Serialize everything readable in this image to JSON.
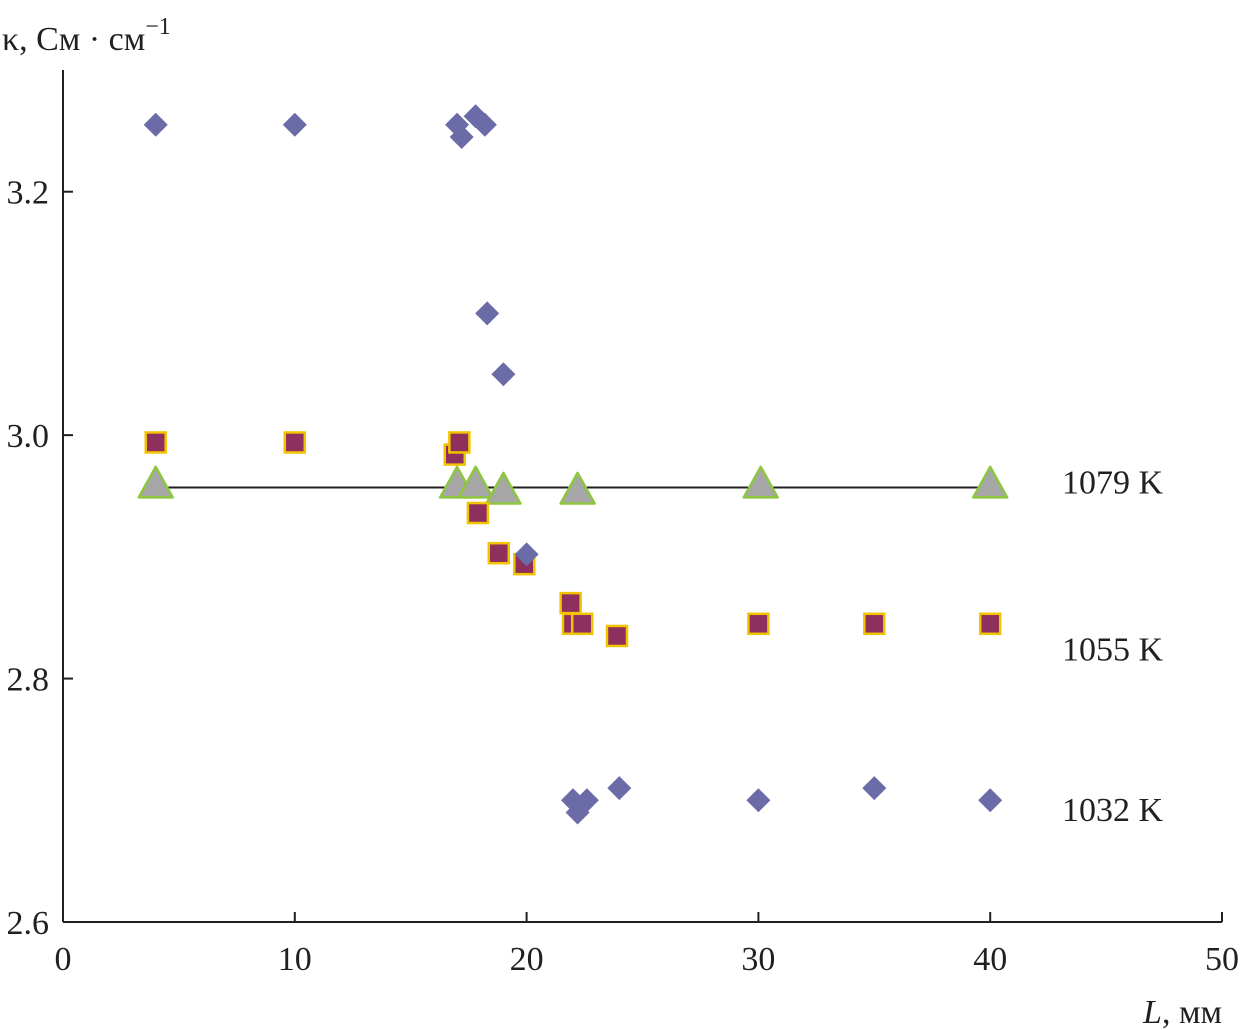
{
  "chart_data": {
    "type": "scatter",
    "title": "",
    "ylabel": {
      "main": "κ, См · см",
      "sup": "−1"
    },
    "xlabel": {
      "italic": "L",
      "rest": ", мм"
    },
    "xlim": [
      0,
      50
    ],
    "ylim": [
      2.6,
      3.3
    ],
    "xticks": [
      0,
      10,
      20,
      30,
      40,
      50
    ],
    "xtick_labels": [
      "0",
      "10",
      "20",
      "30",
      "40",
      "50"
    ],
    "yticks": [
      2.6,
      2.8,
      3.0,
      3.2
    ],
    "ytick_labels": [
      "2.6",
      "2.8",
      "3.0",
      "3.2"
    ],
    "grid": false,
    "colors": {
      "diamond": "#6b6ba8",
      "square_fill": "#8e2f5e",
      "square_edge": "#f2c400",
      "triangle_fill": "#a6a6a6",
      "triangle_edge": "#8dc63f",
      "line": "#231f20",
      "axis": "#231f20"
    },
    "series": [
      {
        "name": "1032 K",
        "marker": "diamond",
        "label_y": 2.683,
        "points": [
          [
            4,
            3.255
          ],
          [
            10,
            3.255
          ],
          [
            17,
            3.255
          ],
          [
            17.2,
            3.245
          ],
          [
            17.8,
            3.262
          ],
          [
            18.2,
            3.255
          ],
          [
            18.3,
            3.1
          ],
          [
            19,
            3.05
          ],
          [
            20,
            2.902
          ],
          [
            22,
            2.7
          ],
          [
            22.2,
            2.69
          ],
          [
            22.6,
            2.7
          ],
          [
            24,
            2.71
          ],
          [
            30,
            2.7
          ],
          [
            35,
            2.71
          ],
          [
            40,
            2.7
          ]
        ]
      },
      {
        "name": "1055 K",
        "marker": "square",
        "label_y": 2.815,
        "points": [
          [
            4,
            2.994
          ],
          [
            10,
            2.994
          ],
          [
            16.9,
            2.984
          ],
          [
            17.1,
            2.994
          ],
          [
            17.9,
            2.936
          ],
          [
            18.8,
            2.903
          ],
          [
            19.9,
            2.894
          ],
          [
            21.9,
            2.862
          ],
          [
            22,
            2.845
          ],
          [
            22.4,
            2.845
          ],
          [
            23.9,
            2.835
          ],
          [
            30,
            2.845
          ],
          [
            35,
            2.845
          ],
          [
            40,
            2.845
          ]
        ]
      },
      {
        "name": "1079 K",
        "marker": "triangle",
        "label_y": 2.952,
        "points": [
          [
            4,
            2.96
          ],
          [
            17,
            2.96
          ],
          [
            17.8,
            2.96
          ],
          [
            19,
            2.955
          ],
          [
            22.2,
            2.955
          ],
          [
            30.1,
            2.96
          ],
          [
            40,
            2.96
          ]
        ],
        "fit_line": {
          "y": 2.957,
          "x_start": 4,
          "x_end": 40
        }
      }
    ]
  }
}
